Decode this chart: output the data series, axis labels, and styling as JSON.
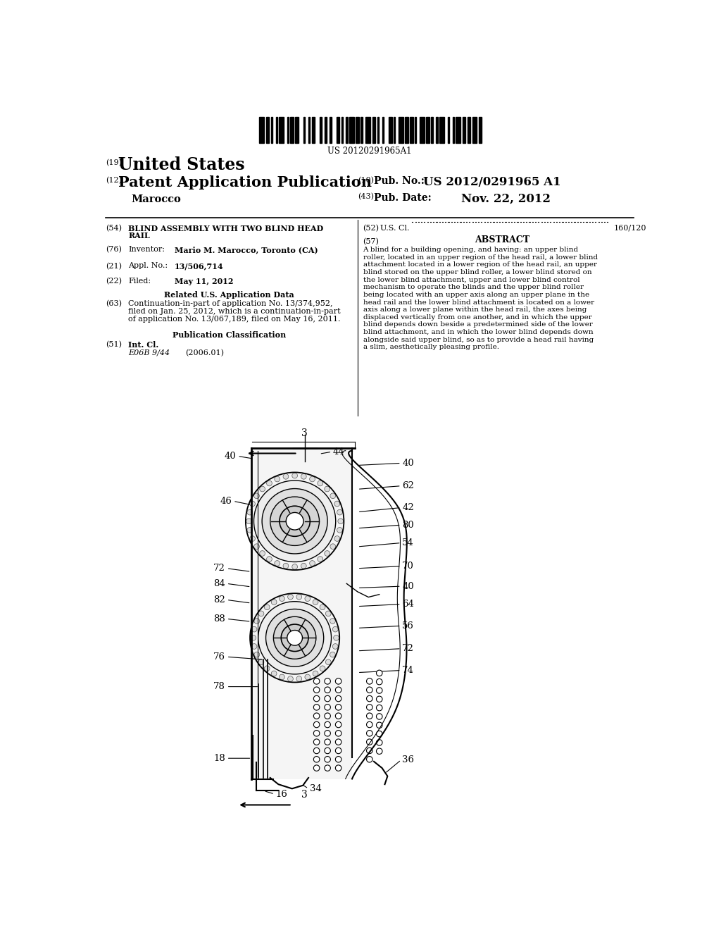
{
  "background_color": "#ffffff",
  "barcode_text": "US 20120291965A1",
  "header": {
    "label19": "(19)",
    "united_states": "United States",
    "label12": "(12)",
    "patent_app": "Patent Application Publication",
    "label10": "(10)",
    "pub_no_label": "Pub. No.:",
    "pub_no": "US 2012/0291965 A1",
    "marocco": "Marocco",
    "label43": "(43)",
    "pub_date_label": "Pub. Date:",
    "pub_date": "Nov. 22, 2012"
  },
  "left_col": {
    "label54": "(54)",
    "title_line1": "BLIND ASSEMBLY WITH TWO BLIND HEAD",
    "title_line2": "RAIL",
    "label76": "(76)",
    "inventor_label": "Inventor:",
    "inventor": "Mario M. Marocco, Toronto (CA)",
    "label21": "(21)",
    "appl_label": "Appl. No.:",
    "appl_no": "13/506,714",
    "label22": "(22)",
    "filed_label": "Filed:",
    "filed": "May 11, 2012",
    "related_header": "Related U.S. Application Data",
    "label63": "(63)",
    "related_line1": "Continuation-in-part of application No. 13/374,952,",
    "related_line2": "filed on Jan. 25, 2012, which is a continuation-in-part",
    "related_line3": "of application No. 13/067,189, filed on May 16, 2011.",
    "pub_class_header": "Publication Classification",
    "label51": "(51)",
    "int_cl_label": "Int. Cl.",
    "int_cl": "E06B 9/44",
    "int_cl_year": "(2006.01)"
  },
  "right_col": {
    "label52": "(52)",
    "us_cl_label": "U.S. Cl.",
    "us_cl_val": "160/120",
    "label57": "(57)",
    "abstract_header": "ABSTRACT",
    "abstract_lines": [
      "A blind for a building opening, and having: an upper blind",
      "roller, located in an upper region of the head rail, a lower blind",
      "attachment located in a lower region of the head rail, an upper",
      "blind stored on the upper blind roller, a lower blind stored on",
      "the lower blind attachment, upper and lower blind control",
      "mechanism to operate the blinds and the upper blind roller",
      "being located with an upper axis along an upper plane in the",
      "head rail and the lower blind attachment is located on a lower",
      "axis along a lower plane within the head rail, the axes being",
      "displaced vertically from one another, and in which the upper",
      "blind depends down beside a predetermined side of the lower",
      "blind attachment, and in which the lower blind depends down",
      "alongside said upper blind, so as to provide a head rail having",
      "a slim, aesthetically pleasing profile."
    ]
  }
}
